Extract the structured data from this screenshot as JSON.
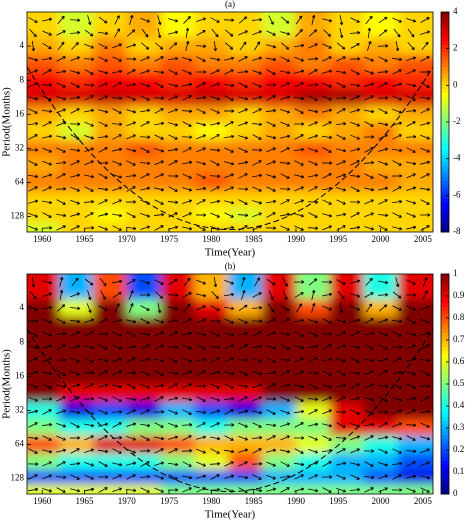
{
  "chart_data": [
    {
      "type": "heatmap",
      "title": "(a)",
      "xlabel": "Time(Year)",
      "ylabel": "Period(Months)",
      "x": [
        1960,
        1964,
        1968,
        1972,
        1976,
        1980,
        1984,
        1988,
        1992,
        1996,
        2000,
        2004
      ],
      "y": [
        2.8,
        4,
        5.7,
        8,
        11.3,
        16,
        22.6,
        32,
        45,
        64,
        90.5,
        128,
        160
      ],
      "z": [
        [
          0,
          -1,
          0,
          0.5,
          -0.5,
          0,
          0,
          -1,
          0.5,
          0,
          -0.5,
          0
        ],
        [
          0.5,
          0,
          1,
          0,
          0.5,
          0.5,
          0,
          0.5,
          1,
          0,
          0.5,
          0
        ],
        [
          1.5,
          1,
          1.5,
          1,
          1.5,
          1,
          1,
          1.5,
          1,
          1.5,
          1,
          1.5
        ],
        [
          2.5,
          2,
          2.5,
          2.5,
          2,
          2.5,
          2,
          2.5,
          2.5,
          2,
          2.5,
          2
        ],
        [
          3,
          3,
          3.2,
          3,
          3,
          3.2,
          3,
          3,
          3.5,
          3.5,
          3,
          3
        ],
        [
          0.5,
          0,
          0.5,
          0,
          0.5,
          0.5,
          0,
          0.5,
          1,
          0.5,
          0,
          0.5
        ],
        [
          0,
          -1,
          0.5,
          0,
          0,
          -0.5,
          0,
          0.5,
          0,
          0.5,
          1,
          0
        ],
        [
          1,
          1,
          1,
          1.5,
          1,
          1,
          1,
          1,
          1.5,
          1,
          1,
          1
        ],
        [
          0.5,
          1,
          1,
          1,
          1,
          1,
          1,
          1,
          1,
          1,
          0.5,
          0.5
        ],
        [
          1,
          1,
          1,
          1,
          1,
          1.5,
          1,
          1,
          1,
          1,
          1,
          0.5
        ],
        [
          0,
          0,
          0,
          0,
          0,
          0,
          0,
          0,
          0,
          0,
          0,
          0
        ],
        [
          0,
          0,
          -0.5,
          0,
          0,
          -0.5,
          -1,
          0,
          0,
          0,
          0,
          0
        ],
        [
          -1,
          0,
          0,
          0,
          0,
          0,
          0,
          0,
          0,
          0,
          0,
          0
        ]
      ],
      "xlim": [
        1958.2,
        2006.2
      ],
      "ylim": [
        2,
        175
      ],
      "ylog": 2,
      "xticks": [
        1960,
        1965,
        1970,
        1975,
        1980,
        1985,
        1990,
        1995,
        2000,
        2005
      ],
      "yticks": [
        4,
        8,
        16,
        32,
        64,
        128
      ],
      "colormap": "jet",
      "clim": [
        -8,
        4
      ],
      "cticks": [
        4,
        2,
        0,
        -2,
        -4,
        -6,
        -8
      ]
    },
    {
      "type": "heatmap",
      "title": "(b)",
      "xlabel": "Time(Year)",
      "ylabel": "Period(Months)",
      "x": [
        1960,
        1964,
        1968,
        1972,
        1976,
        1980,
        1984,
        1988,
        1992,
        1996,
        2000,
        2004
      ],
      "y": [
        2.8,
        4,
        5.7,
        8,
        11.3,
        16,
        22.6,
        32,
        45,
        64,
        90.5,
        128,
        160
      ],
      "z": [
        [
          0.9,
          0.3,
          0.8,
          0.2,
          0.9,
          0.7,
          0.3,
          0.9,
          0.5,
          0.9,
          0.4,
          0.9
        ],
        [
          1,
          0.6,
          1,
          0.5,
          1,
          0.9,
          0.7,
          1,
          0.8,
          1,
          0.7,
          1
        ],
        [
          1,
          1,
          1,
          1,
          1,
          1,
          1,
          1,
          1,
          1,
          1,
          1
        ],
        [
          1,
          1,
          1,
          1,
          1,
          1,
          1,
          1,
          1,
          1,
          1,
          1
        ],
        [
          1,
          1,
          1,
          1,
          1,
          1,
          1,
          1,
          1,
          1,
          1,
          1
        ],
        [
          1,
          1,
          1,
          1,
          1,
          1,
          1,
          1,
          1,
          1,
          1,
          1
        ],
        [
          1,
          0.9,
          0.9,
          0.9,
          0.9,
          0.9,
          0.9,
          1,
          1,
          1,
          1,
          1
        ],
        [
          0.4,
          0.1,
          0.2,
          0.1,
          0.3,
          0.2,
          0.1,
          0.3,
          0.6,
          0.9,
          1,
          1
        ],
        [
          0.5,
          0.4,
          0.4,
          0.5,
          0.5,
          0.4,
          0.5,
          0.5,
          0.5,
          0.9,
          0.9,
          0.8
        ],
        [
          0.8,
          0.7,
          0.9,
          0.9,
          0.8,
          0.7,
          0.7,
          0.7,
          0.6,
          0.5,
          0.4,
          0.3
        ],
        [
          0.5,
          0.4,
          0.4,
          0.4,
          0.5,
          0.6,
          0.8,
          0.5,
          0.4,
          0.3,
          0.3,
          0.2
        ],
        [
          0.2,
          0.2,
          0.2,
          0.2,
          0.2,
          0.2,
          0.2,
          0.3,
          0.3,
          0.3,
          0.2,
          0.1
        ],
        [
          0.6,
          0.6,
          0.6,
          0.6,
          0.5,
          0.5,
          0.5,
          0.5,
          0.5,
          0.5,
          0.5,
          0.5
        ]
      ],
      "xlim": [
        1958.2,
        2006.2
      ],
      "ylim": [
        2,
        175
      ],
      "ylog": 2,
      "xticks": [
        1960,
        1965,
        1970,
        1975,
        1980,
        1985,
        1990,
        1995,
        2000,
        2005
      ],
      "yticks": [
        4,
        8,
        16,
        32,
        64,
        128
      ],
      "colormap": "jet",
      "clim": [
        0,
        1
      ],
      "cticks": [
        1,
        0.9,
        0.8,
        0.7,
        0.6,
        0.5,
        0.4,
        0.3,
        0.2,
        0.1,
        0
      ]
    }
  ]
}
